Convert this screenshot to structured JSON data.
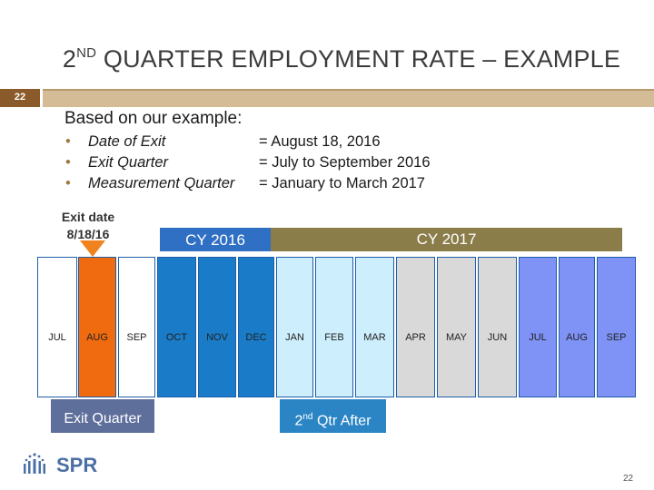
{
  "slide": {
    "number_tab": "22",
    "title_prefix": "2",
    "title_sup": "ND",
    "title_rest": " QUARTER EMPLOYMENT RATE – EXAMPLE",
    "intro": "Based on our example:",
    "bullets": [
      {
        "bullet": "•",
        "term": "Date of Exit",
        "value": "= August 18, 2016"
      },
      {
        "bullet": "•",
        "term": "Exit Quarter",
        "value": "= July to September 2016"
      },
      {
        "bullet": "•",
        "term": "Measurement Quarter",
        "value": "= January to March 2017"
      }
    ],
    "page_number": "22"
  },
  "timeline": {
    "exit_date_label": "Exit date",
    "exit_date_value": "8/18/16",
    "cy2016": "CY 2016",
    "cy2017": "CY 2017",
    "months": [
      "JUL",
      "AUG",
      "SEP",
      "OCT",
      "NOV",
      "DEC",
      "JAN",
      "FEB",
      "MAR",
      "APR",
      "MAY",
      "JUN",
      "JUL",
      "AUG",
      "SEP"
    ],
    "exit_quarter_label": "Exit Quarter",
    "after_prefix": "2",
    "after_sup": "nd",
    "after_rest": " Qtr After",
    "colors": {
      "q_exit": "#ffffff",
      "aug_highlight": "#f06a0f",
      "q_2016_q4": "#1a7cc8",
      "q_2017_q1": "#cdeefc",
      "q_2017_q2": "#d9d9d9",
      "q_2017_q3": "#7f92f5"
    }
  },
  "logo": {
    "text": "SPR"
  }
}
